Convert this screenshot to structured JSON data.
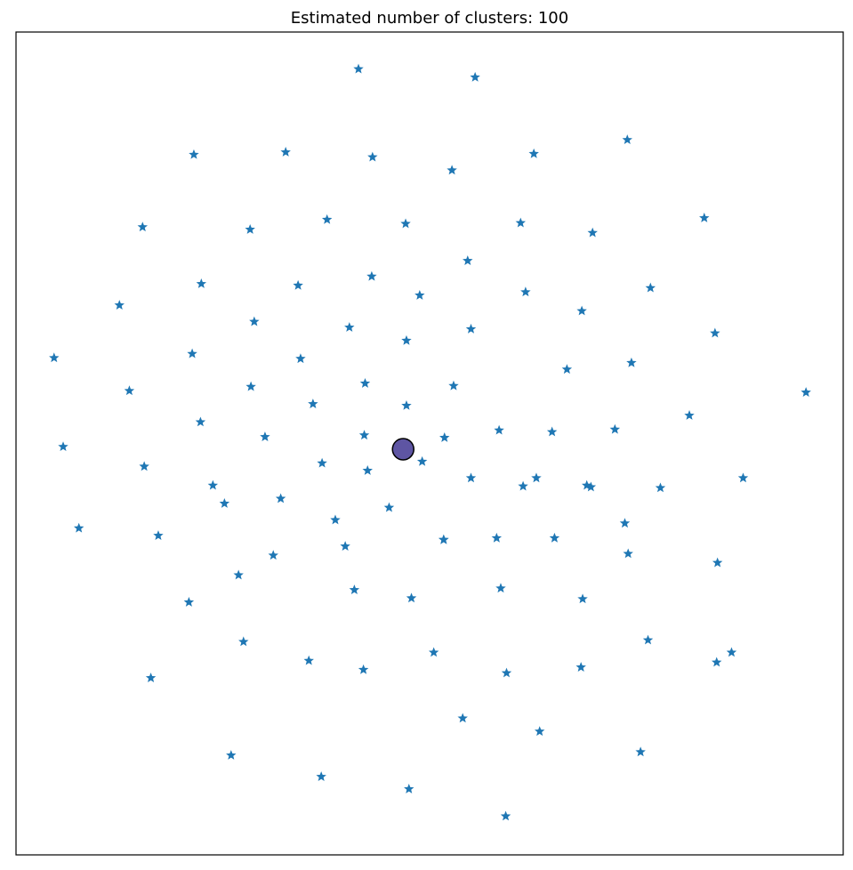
{
  "chart_data": {
    "type": "scatter",
    "title": "Estimated number of clusters: 100",
    "xlabel": "",
    "ylabel": "",
    "grid": false,
    "legend": "none",
    "x_ticks": [],
    "y_ticks": [],
    "colors": {
      "points": "#1f77b4",
      "center": "#5e55a3",
      "center_edge": "#000000",
      "axes": "#000000"
    },
    "xlim": [
      0,
      1000
    ],
    "ylim": [
      0,
      1000
    ],
    "series": [
      {
        "marker": "star",
        "points": [
          [
            414,
            955
          ],
          [
            555,
            945
          ],
          [
            215,
            851
          ],
          [
            326,
            854
          ],
          [
            431,
            848
          ],
          [
            527,
            832
          ],
          [
            626,
            852
          ],
          [
            739,
            869
          ],
          [
            153,
            763
          ],
          [
            283,
            760
          ],
          [
            376,
            772
          ],
          [
            471,
            767
          ],
          [
            610,
            768
          ],
          [
            697,
            756
          ],
          [
            832,
            774
          ],
          [
            224,
            694
          ],
          [
            341,
            692
          ],
          [
            430,
            703
          ],
          [
            488,
            680
          ],
          [
            546,
            722
          ],
          [
            616,
            684
          ],
          [
            684,
            661
          ],
          [
            767,
            689
          ],
          [
            125,
            668
          ],
          [
            288,
            648
          ],
          [
            403,
            641
          ],
          [
            472,
            625
          ],
          [
            550,
            639
          ],
          [
            845,
            634
          ],
          [
            46,
            604
          ],
          [
            213,
            609
          ],
          [
            344,
            603
          ],
          [
            666,
            590
          ],
          [
            744,
            598
          ],
          [
            137,
            564
          ],
          [
            284,
            569
          ],
          [
            359,
            548
          ],
          [
            422,
            573
          ],
          [
            472,
            546
          ],
          [
            529,
            570
          ],
          [
            955,
            562
          ],
          [
            223,
            526
          ],
          [
            301,
            508
          ],
          [
            421,
            510
          ],
          [
            518,
            507
          ],
          [
            584,
            516
          ],
          [
            648,
            514
          ],
          [
            724,
            517
          ],
          [
            814,
            534
          ],
          [
            57,
            496
          ],
          [
            155,
            472
          ],
          [
            370,
            476
          ],
          [
            425,
            467
          ],
          [
            491,
            478
          ],
          [
            550,
            458
          ],
          [
            629,
            458
          ],
          [
            695,
            447
          ],
          [
            779,
            446
          ],
          [
            879,
            458
          ],
          [
            76,
            397
          ],
          [
            238,
            449
          ],
          [
            172,
            388
          ],
          [
            252,
            427
          ],
          [
            320,
            433
          ],
          [
            386,
            407
          ],
          [
            451,
            422
          ],
          [
            517,
            383
          ],
          [
            581,
            385
          ],
          [
            613,
            448
          ],
          [
            651,
            385
          ],
          [
            736,
            403
          ],
          [
            848,
            355
          ],
          [
            690,
            449
          ],
          [
            311,
            364
          ],
          [
            398,
            375
          ],
          [
            517,
            383
          ],
          [
            740,
            366
          ],
          [
            209,
            307
          ],
          [
            269,
            340
          ],
          [
            409,
            322
          ],
          [
            478,
            312
          ],
          [
            586,
            324
          ],
          [
            685,
            311
          ],
          [
            764,
            261
          ],
          [
            847,
            234
          ],
          [
            163,
            215
          ],
          [
            275,
            259
          ],
          [
            354,
            236
          ],
          [
            420,
            225
          ],
          [
            505,
            246
          ],
          [
            593,
            221
          ],
          [
            683,
            228
          ],
          [
            865,
            246
          ],
          [
            260,
            121
          ],
          [
            369,
            95
          ],
          [
            475,
            80
          ],
          [
            540,
            166
          ],
          [
            633,
            150
          ],
          [
            755,
            125
          ],
          [
            592,
            47
          ]
        ]
      }
    ],
    "centers": [
      [
        468,
        493
      ]
    ]
  }
}
